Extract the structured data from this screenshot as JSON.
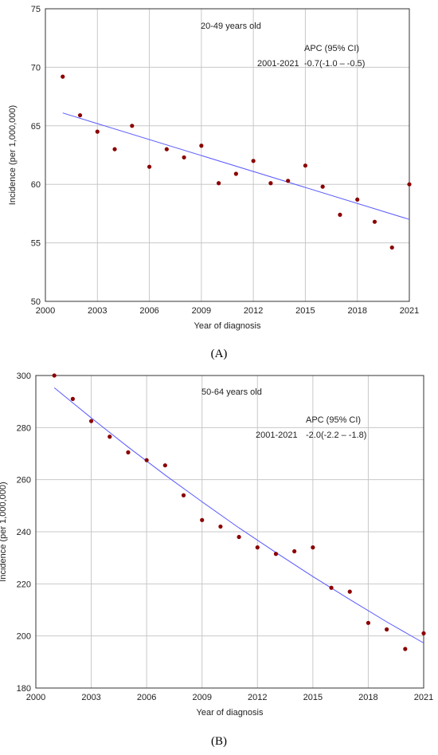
{
  "chart_data": [
    {
      "type": "scatter",
      "subtitle": "20-49 years old",
      "xlabel": "Year of diagnosis",
      "ylabel": "Incidence (per 1,000,000)",
      "xlim": [
        2000,
        2021
      ],
      "ylim": [
        50,
        75
      ],
      "xticks": [
        2000,
        2003,
        2006,
        2009,
        2012,
        2015,
        2018,
        2021
      ],
      "yticks": [
        50,
        55,
        60,
        65,
        70,
        75
      ],
      "grid": true,
      "apc_header": "APC (95% CI)",
      "apc_period": "2001-2021",
      "apc_value": "-0.7(-1.0 – -0.5)",
      "points": {
        "x": [
          2001,
          2002,
          2003,
          2004,
          2005,
          2006,
          2007,
          2008,
          2009,
          2010,
          2011,
          2012,
          2013,
          2014,
          2015,
          2016,
          2017,
          2018,
          2019,
          2020,
          2021
        ],
        "y": [
          69.2,
          65.9,
          64.5,
          63.0,
          65.0,
          61.5,
          63.0,
          62.3,
          63.3,
          60.1,
          60.9,
          62.0,
          60.1,
          60.3,
          61.6,
          59.8,
          57.4,
          58.7,
          56.8,
          54.6,
          60.0
        ]
      },
      "fit": {
        "x": [
          2001,
          2021
        ],
        "y": [
          66.1,
          57.0
        ]
      },
      "colors": {
        "points": "#8b0000",
        "fit": "#5a5aff",
        "grid": "#c8c8c8"
      },
      "caption": "(A)"
    },
    {
      "type": "scatter",
      "subtitle": "50-64 years old",
      "xlabel": "Year of diagnosis",
      "ylabel": "Incidence (per 1,000,000)",
      "xlim": [
        2000,
        2021
      ],
      "ylim": [
        180,
        300
      ],
      "xticks": [
        2000,
        2003,
        2006,
        2009,
        2012,
        2015,
        2018,
        2021
      ],
      "yticks": [
        180,
        200,
        220,
        240,
        260,
        280,
        300
      ],
      "grid": true,
      "apc_header": "APC (95% CI)",
      "apc_period": "2001-2021",
      "apc_value": "-2.0(-2.2 – -1.8)",
      "points": {
        "x": [
          2001,
          2002,
          2003,
          2004,
          2005,
          2006,
          2007,
          2008,
          2009,
          2010,
          2011,
          2012,
          2013,
          2014,
          2015,
          2016,
          2017,
          2018,
          2019,
          2020,
          2021
        ],
        "y": [
          300.0,
          291.0,
          282.5,
          276.5,
          270.5,
          267.5,
          265.5,
          254.0,
          244.5,
          242.0,
          238.0,
          234.0,
          231.5,
          232.5,
          234.0,
          218.5,
          217.0,
          205.0,
          202.5,
          195.0,
          201.0
        ]
      },
      "fit": {
        "x": [
          2001,
          2003,
          2005,
          2007,
          2009,
          2011,
          2013,
          2015,
          2017,
          2019,
          2021
        ],
        "y": [
          295.3,
          283.7,
          272.5,
          261.8,
          251.5,
          241.5,
          232.0,
          222.8,
          214.0,
          205.4,
          197.3
        ]
      },
      "colors": {
        "points": "#8b0000",
        "fit": "#5a5aff",
        "grid": "#c8c8c8"
      },
      "caption": "(B)"
    }
  ]
}
